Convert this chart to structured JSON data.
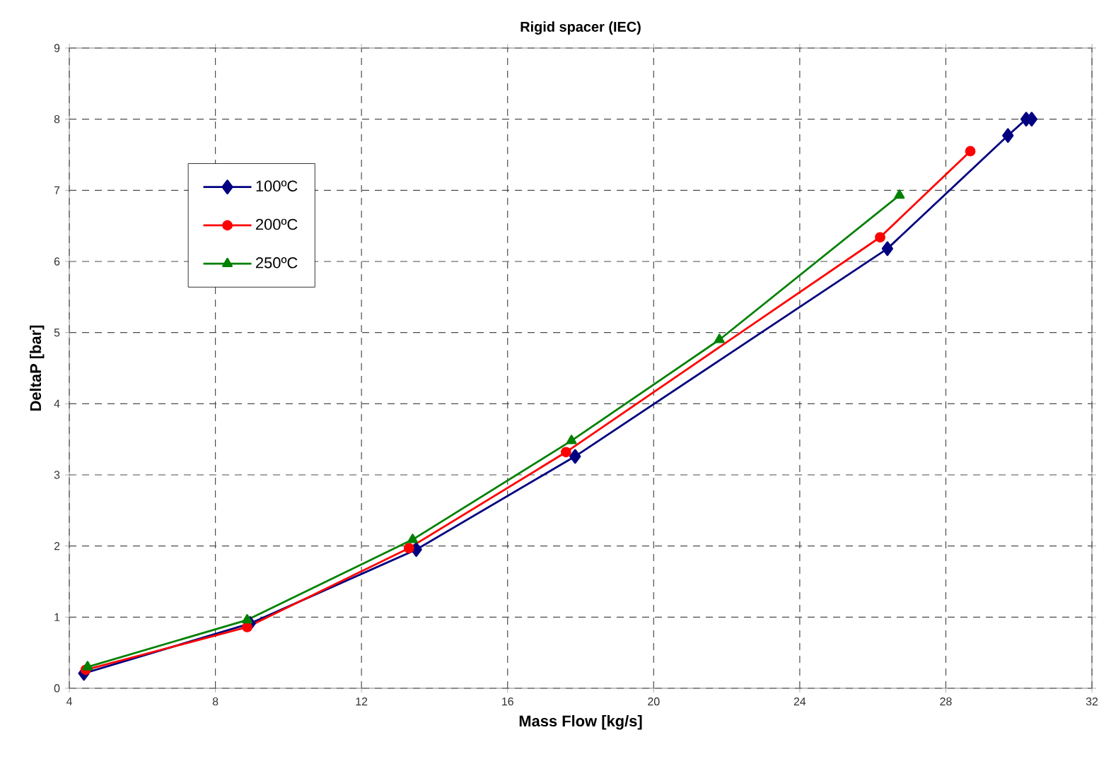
{
  "chart_data": {
    "type": "line",
    "title": "Rigid spacer (IEC)",
    "xlabel": "Mass Flow [kg/s]",
    "ylabel": "DeltaP [bar]",
    "xlim": [
      4,
      32
    ],
    "xticks": [
      4,
      8,
      12,
      16,
      20,
      24,
      28,
      32
    ],
    "ylim": [
      0,
      9
    ],
    "yticks": [
      0,
      1,
      2,
      3,
      4,
      5,
      6,
      7,
      8,
      9
    ],
    "grid": true,
    "legend": "top left",
    "line_style": "solid",
    "series": [
      {
        "name": "100ºC",
        "color": "#000080",
        "marker": "diamond",
        "x": [
          4.4,
          8.95,
          13.5,
          17.85,
          26.4,
          29.7,
          30.2,
          30.35
        ],
        "values": [
          0.21,
          0.91,
          1.95,
          3.26,
          6.18,
          7.77,
          8.0,
          8.0
        ]
      },
      {
        "name": "200ºC",
        "color": "#ff0000",
        "marker": "circle",
        "x": [
          4.45,
          8.87,
          13.3,
          17.6,
          26.2,
          28.67
        ],
        "values": [
          0.26,
          0.86,
          1.97,
          3.32,
          6.34,
          7.55
        ]
      },
      {
        "name": "250ºC",
        "color": "#008000",
        "marker": "triangle",
        "x": [
          4.5,
          8.87,
          13.4,
          17.75,
          21.8,
          26.73
        ],
        "values": [
          0.3,
          0.96,
          2.09,
          3.48,
          4.9,
          6.93
        ]
      }
    ]
  }
}
